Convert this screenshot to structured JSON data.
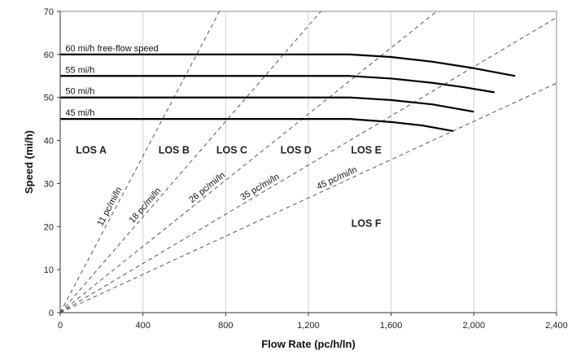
{
  "chart_data": {
    "type": "line",
    "xlabel": "Flow Rate (pc/h/ln)",
    "ylabel": "Speed (mi/h)",
    "xlim": [
      0,
      2400
    ],
    "ylim": [
      0,
      70
    ],
    "x_ticks": [
      0,
      400,
      800,
      1200,
      1600,
      2000,
      2400
    ],
    "x_tick_labels": [
      "0",
      "400",
      "800",
      "1,200",
      "1,600",
      "2,000",
      "2,400"
    ],
    "y_ticks": [
      0,
      10,
      20,
      30,
      40,
      50,
      60,
      70
    ],
    "y_tick_labels": [
      "0",
      "10",
      "20",
      "30",
      "40",
      "50",
      "60",
      "70"
    ],
    "grid": "vertical",
    "series": [
      {
        "name": "60 mi/h free-flow speed",
        "x": [
          0,
          1400,
          1600,
          1800,
          2000,
          2200
        ],
        "y": [
          60,
          60,
          59.4,
          58.3,
          56.8,
          55
        ]
      },
      {
        "name": "55 mi/h",
        "x": [
          0,
          1400,
          1600,
          1800,
          1950,
          2100
        ],
        "y": [
          55,
          55,
          54.4,
          53.4,
          52.4,
          51.2
        ]
      },
      {
        "name": "50 mi/h",
        "x": [
          0,
          1400,
          1600,
          1800,
          2000
        ],
        "y": [
          50,
          50,
          49.4,
          48.4,
          46.7
        ]
      },
      {
        "name": "45 mi/h",
        "x": [
          0,
          1400,
          1600,
          1750,
          1900
        ],
        "y": [
          45,
          45,
          44.3,
          43.5,
          42.2
        ]
      }
    ],
    "density_lines": [
      {
        "label": "11 pc/mi/ln",
        "density": 11
      },
      {
        "label": "18 pc/mi/ln",
        "density": 18
      },
      {
        "label": "26 pc/mi/ln",
        "density": 26
      },
      {
        "label": "35 pc/mi/ln",
        "density": 35
      },
      {
        "label": "45 pc/mi/ln",
        "density": 45
      }
    ],
    "los_labels": [
      {
        "text": "LOS A",
        "x": 150,
        "y": 37
      },
      {
        "text": "LOS B",
        "x": 550,
        "y": 37
      },
      {
        "text": "LOS C",
        "x": 830,
        "y": 37
      },
      {
        "text": "LOS D",
        "x": 1140,
        "y": 37
      },
      {
        "text": "LOS E",
        "x": 1480,
        "y": 37
      },
      {
        "text": "LOS F",
        "x": 1480,
        "y": 20
      }
    ]
  }
}
